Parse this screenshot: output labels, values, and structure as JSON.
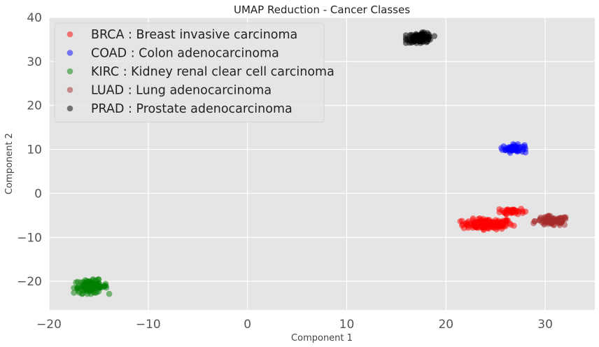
{
  "chart_data": {
    "type": "scatter",
    "title": "UMAP Reduction - Cancer Classes",
    "xlabel": "Component 1",
    "ylabel": "Component 2",
    "xlim": [
      -20,
      35
    ],
    "ylim": [
      -26.5,
      40
    ],
    "xticks": [
      -20,
      -10,
      0,
      10,
      20,
      30
    ],
    "yticks": [
      -20,
      -10,
      0,
      10,
      20,
      30,
      40
    ],
    "xtick_labels": [
      "−20",
      "−10",
      "0",
      "10",
      "20",
      "30"
    ],
    "ytick_labels": [
      "−20",
      "−10",
      "0",
      "10",
      "20",
      "30",
      "40"
    ],
    "grid": true,
    "background": "#e5e5e5",
    "legend_position": "top-left",
    "series": [
      {
        "name": "BRCA : Breast invasive carcinoma",
        "color": "#ff0000",
        "clusters": [
          {
            "cx": 24.2,
            "cy": -7.0,
            "sx": 1.25,
            "sy": 0.6,
            "n": 150
          },
          {
            "cx": 26.7,
            "cy": -4.0,
            "sx": 0.6,
            "sy": 0.35,
            "n": 40
          }
        ]
      },
      {
        "name": "COAD : Colon adenocarcinoma",
        "color": "#0000ff",
        "clusters": [
          {
            "cx": 26.8,
            "cy": 10.2,
            "sx": 0.55,
            "sy": 0.45,
            "n": 55
          }
        ]
      },
      {
        "name": "KIRC : Kidney renal clear cell carcinoma",
        "color": "#008000",
        "clusters": [
          {
            "cx": -15.8,
            "cy": -21.2,
            "sx": 0.85,
            "sy": 0.75,
            "n": 100
          }
        ]
      },
      {
        "name": "LUAD : Lung adenocarcinoma",
        "color": "#a52a2a",
        "clusters": [
          {
            "cx": 30.7,
            "cy": -6.3,
            "sx": 0.85,
            "sy": 0.55,
            "n": 90
          }
        ]
      },
      {
        "name": "PRAD : Prostate adenocarcinoma",
        "color": "#000000",
        "clusters": [
          {
            "cx": 17.4,
            "cy": 35.4,
            "sx": 0.65,
            "sy": 0.55,
            "n": 90
          }
        ]
      }
    ]
  }
}
